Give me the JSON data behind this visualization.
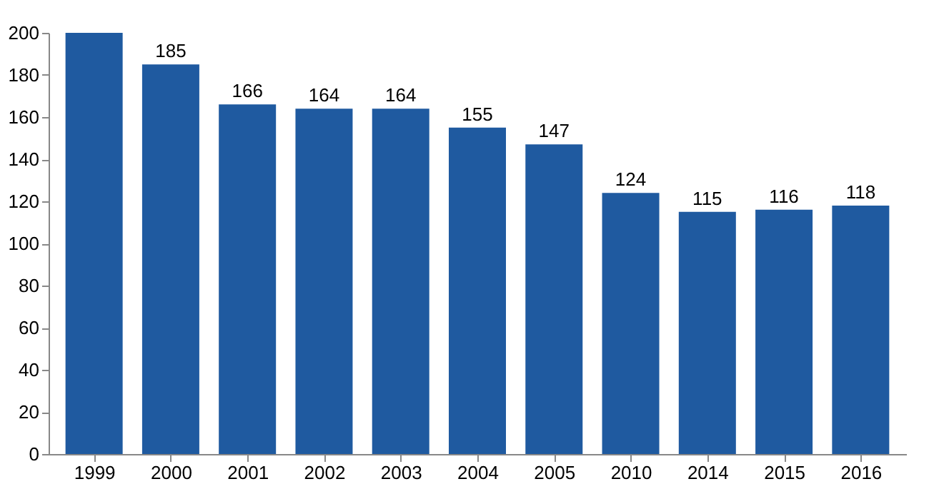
{
  "chart_data": {
    "type": "bar",
    "categories": [
      "1999",
      "2000",
      "2001",
      "2002",
      "2003",
      "2004",
      "2005",
      "2010",
      "2014",
      "2015",
      "2016"
    ],
    "values": [
      200,
      185,
      166,
      164,
      164,
      155,
      147,
      124,
      115,
      116,
      118
    ],
    "value_labels": [
      null,
      "185",
      "166",
      "164",
      "164",
      "155",
      "147",
      "124",
      "115",
      "116",
      "118"
    ],
    "color": "#1f5aa0",
    "ylim": [
      0,
      200
    ],
    "yticks": [
      0,
      20,
      40,
      60,
      80,
      100,
      120,
      140,
      160,
      180,
      200
    ],
    "grid": false
  }
}
